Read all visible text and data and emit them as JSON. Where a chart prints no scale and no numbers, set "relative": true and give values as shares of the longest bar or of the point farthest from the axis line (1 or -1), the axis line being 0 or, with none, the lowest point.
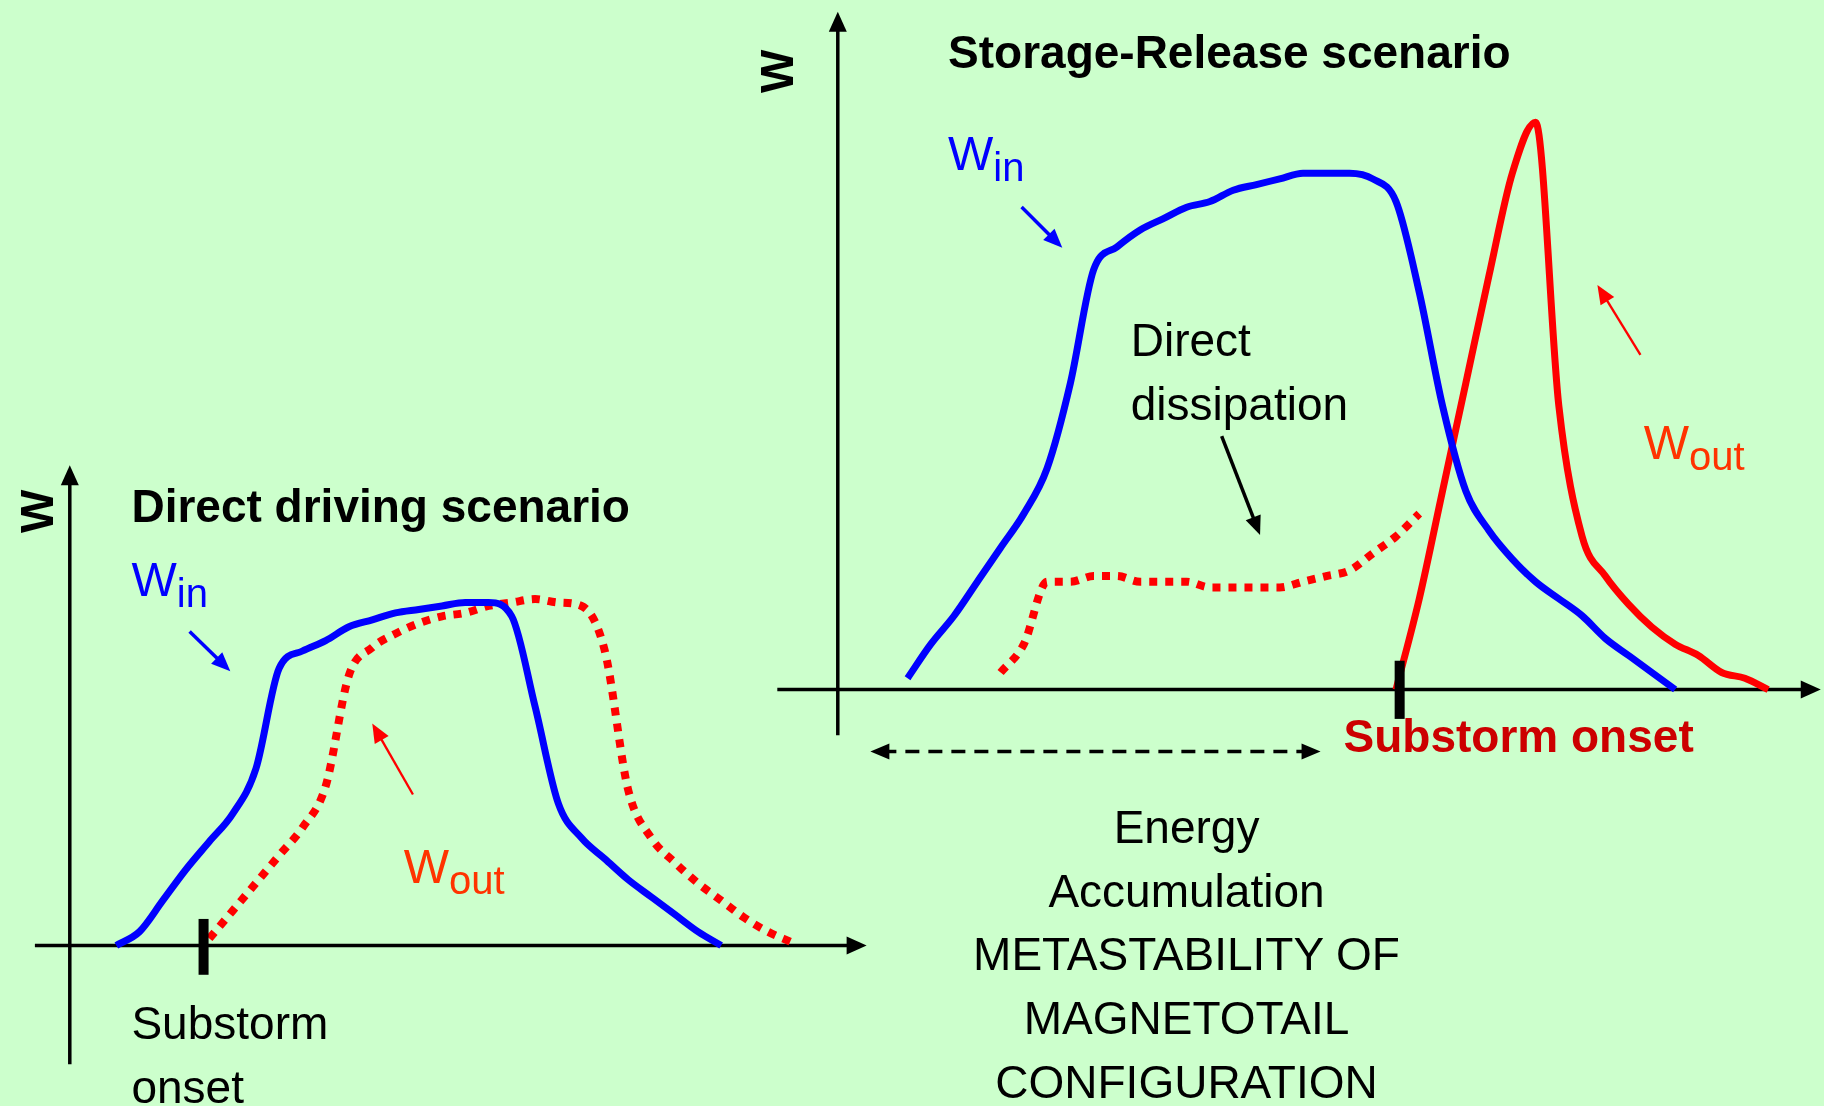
{
  "chart_data": [
    {
      "type": "line",
      "title": "Direct driving scenario",
      "ylabel": "W",
      "relative": true,
      "categories": [
        null,
        null,
        null,
        null,
        null,
        null,
        null,
        null,
        null,
        null,
        null,
        null,
        null,
        null,
        null,
        null,
        null,
        null,
        null,
        null,
        null,
        null,
        null,
        null,
        null,
        null,
        null,
        null,
        null,
        null,
        null,
        null,
        null
      ],
      "series": [
        {
          "name": "W$_{in}$",
          "color": "#0000ff",
          "line_style": "solid",
          "values": [
            null,
            null,
            0,
            0.04,
            0.13,
            0.22,
            0.3,
            0.38,
            0.51,
            0.8,
            0.85,
            0.88,
            0.92,
            0.94,
            0.96,
            0.97,
            0.98,
            0.99,
            0.99,
            0.95,
            0.69,
            0.41,
            0.31,
            0.25,
            0.19,
            0.14,
            0.09,
            0.04,
            0,
            null,
            null,
            null,
            null
          ]
        },
        {
          "name": "W$_{out}$",
          "color": "#ff0000",
          "line_style": "dotted",
          "values": [
            null,
            null,
            null,
            null,
            null,
            null,
            0.02,
            0.1,
            0.18,
            0.26,
            0.34,
            0.46,
            0.78,
            0.86,
            0.9,
            0.93,
            0.95,
            0.96,
            0.98,
            0.99,
            1,
            0.99,
            0.98,
            0.85,
            0.45,
            0.31,
            0.24,
            0.18,
            0.13,
            0.08,
            0.04,
            0.01,
            null
          ]
        }
      ],
      "annotations": [
        "Substorm onset"
      ]
    },
    {
      "type": "line",
      "title": "Storage-Release scenario",
      "ylabel": "W",
      "relative": true,
      "categories": [
        null,
        null,
        null,
        null,
        null,
        null,
        null,
        null,
        null,
        null,
        null,
        null,
        null,
        null,
        null,
        null,
        null,
        null,
        null,
        null,
        null,
        null,
        null,
        null,
        null,
        null,
        null,
        null,
        null,
        null,
        null,
        null,
        null,
        null,
        null,
        null,
        null,
        null,
        null,
        null,
        null,
        null
      ],
      "series": [
        {
          "name": "W$_{in}$",
          "color": "#0000ff",
          "line_style": "solid",
          "values": [
            null,
            null,
            null,
            0.02,
            0.08,
            0.13,
            0.19,
            0.25,
            0.31,
            0.39,
            0.54,
            0.74,
            0.78,
            0.81,
            0.83,
            0.85,
            0.86,
            0.88,
            0.89,
            0.9,
            0.91,
            0.91,
            0.91,
            0.9,
            0.86,
            0.7,
            0.5,
            0.35,
            0.28,
            0.23,
            0.19,
            0.16,
            0.13,
            0.09,
            0.06,
            0.03,
            0,
            null,
            null,
            null,
            null,
            null
          ]
        },
        {
          "color": "#ff0000",
          "line_style": "dotted",
          "values": [
            null,
            null,
            null,
            null,
            null,
            null,
            null,
            0.03,
            0.08,
            0.19,
            0.19,
            0.2,
            0.2,
            0.19,
            0.19,
            0.19,
            0.18,
            0.18,
            0.18,
            0.18,
            0.19,
            0.2,
            0.21,
            0.24,
            0.27,
            0.31,
            null,
            null,
            null,
            null,
            null,
            null,
            null,
            null,
            null,
            null,
            null,
            null,
            null,
            null,
            null,
            null
          ]
        },
        {
          "name": "W$_{out}$",
          "color": "#ff0000",
          "line_style": "solid",
          "values": [
            null,
            null,
            null,
            null,
            null,
            null,
            null,
            null,
            null,
            null,
            null,
            null,
            null,
            null,
            null,
            null,
            null,
            null,
            null,
            null,
            null,
            null,
            null,
            null,
            0,
            0.16,
            0.35,
            0.54,
            0.73,
            0.91,
            1,
            0.5,
            0.27,
            0.2,
            0.15,
            0.11,
            0.08,
            0.06,
            0.03,
            0.02,
            0,
            null
          ]
        }
      ],
      "annotations": [
        "Direct dissipation",
        "Substorm onset",
        "Energy Accumulation",
        "METASTABILITY OF MAGNETOTAIL CONFIGURATION"
      ]
    }
  ]
}
